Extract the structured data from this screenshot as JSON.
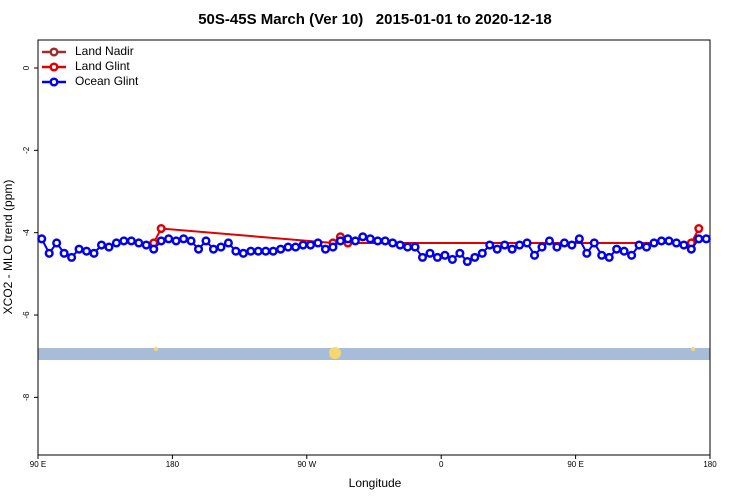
{
  "chart_data": {
    "type": "line",
    "title": "50S-45S March (Ver 10)   2015-01-01 to 2020-12-18",
    "x_label": "Longitude",
    "y_label": "XCO2 - MLO trend (ppm)",
    "xlim": [
      90,
      540
    ],
    "ylim": [
      -9.4,
      0.68
    ],
    "xticks": [
      {
        "value": 90,
        "label": "90 E"
      },
      {
        "value": 180,
        "label": "180"
      },
      {
        "value": 270,
        "label": "90 W"
      },
      {
        "value": 360,
        "label": "0"
      },
      {
        "value": 450,
        "label": "90 E"
      },
      {
        "value": 540,
        "label": "180"
      }
    ],
    "yticks": [
      0,
      -2,
      -4,
      -6,
      -8
    ],
    "legend": "top-left",
    "series": [
      {
        "name": "Land Nadir",
        "color": "#a52a2a",
        "x": [],
        "values": []
      },
      {
        "name": "Land Glint",
        "color": "#e00000",
        "x": [
          167.5,
          172.5,
          287.5,
          292.5,
          297.5,
          527.5,
          532.5
        ],
        "values": [
          -4.25,
          -3.9,
          -4.25,
          -4.1,
          -4.25,
          -4.25,
          -3.9
        ]
      },
      {
        "name": "Ocean Glint",
        "color": "#0000ee",
        "x": [
          92.5,
          97.5,
          102.5,
          107.5,
          112.5,
          117.5,
          122.5,
          127.5,
          132.5,
          137.5,
          142.5,
          147.5,
          152.5,
          157.5,
          162.5,
          167.5,
          172.5,
          177.5,
          182.5,
          187.5,
          192.5,
          197.5,
          202.5,
          207.5,
          212.5,
          217.5,
          222.5,
          227.5,
          232.5,
          237.5,
          242.5,
          247.5,
          252.5,
          257.5,
          262.5,
          267.5,
          272.5,
          277.5,
          282.5,
          287.5,
          292.5,
          297.5,
          302.5,
          307.5,
          312.5,
          317.5,
          322.5,
          327.5,
          332.5,
          337.5,
          342.5,
          347.5,
          352.5,
          357.5,
          362.5,
          367.5,
          372.5,
          377.5,
          382.5,
          387.5,
          392.5,
          397.5,
          402.5,
          407.5,
          412.5,
          417.5,
          422.5,
          427.5,
          432.5,
          437.5,
          442.5,
          447.5,
          452.5,
          457.5,
          462.5,
          467.5,
          472.5,
          477.5,
          482.5,
          487.5,
          492.5,
          497.5,
          502.5,
          507.5,
          512.5,
          517.5,
          522.5,
          527.5,
          532.5,
          537.5
        ],
        "values": [
          -4.15,
          -4.5,
          -4.25,
          -4.5,
          -4.6,
          -4.4,
          -4.45,
          -4.5,
          -4.3,
          -4.35,
          -4.25,
          -4.2,
          -4.2,
          -4.25,
          -4.3,
          -4.4,
          -4.2,
          -4.15,
          -4.2,
          -4.15,
          -4.2,
          -4.4,
          -4.2,
          -4.4,
          -4.35,
          -4.25,
          -4.45,
          -4.5,
          -4.45,
          -4.45,
          -4.45,
          -4.45,
          -4.4,
          -4.35,
          -4.35,
          -4.3,
          -4.3,
          -4.25,
          -4.4,
          -4.35,
          -4.2,
          -4.15,
          -4.2,
          -4.1,
          -4.15,
          -4.2,
          -4.2,
          -4.25,
          -4.3,
          -4.35,
          -4.35,
          -4.6,
          -4.5,
          -4.6,
          -4.55,
          -4.65,
          -4.5,
          -4.7,
          -4.6,
          -4.5,
          -4.3,
          -4.4,
          -4.3,
          -4.4,
          -4.3,
          -4.25,
          -4.55,
          -4.35,
          -4.2,
          -4.35,
          -4.25,
          -4.3,
          -4.15,
          -4.5,
          -4.25,
          -4.55,
          -4.6,
          -4.4,
          -4.45,
          -4.55,
          -4.3,
          -4.35,
          -4.25,
          -4.2,
          -4.2,
          -4.25,
          -4.3,
          -4.4,
          -4.15,
          -4.15
        ]
      }
    ]
  }
}
